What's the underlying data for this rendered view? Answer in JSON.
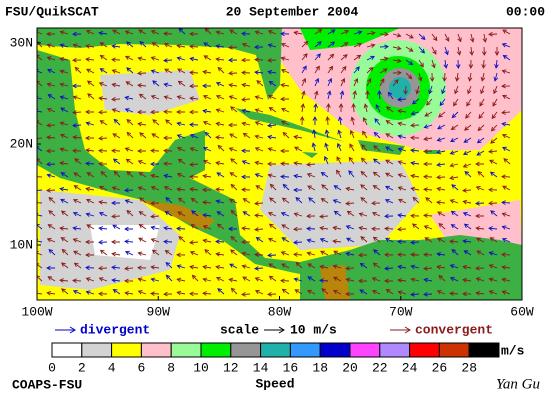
{
  "header": {
    "source": "FSU/QuikSCAT",
    "date": "20 September 2004",
    "time": "00:00"
  },
  "map": {
    "lat_labels": [
      "30N",
      "20N",
      "10N"
    ],
    "lon_labels": [
      "100W",
      "90W",
      "80W",
      "70W",
      "60W"
    ]
  },
  "legend": {
    "divergent": "divergent",
    "scale": "scale",
    "scale_value": "10 m/s",
    "convergent": "convergent"
  },
  "speed_legend": {
    "title": "Speed",
    "unit": "m/s",
    "labels": [
      0,
      2,
      4,
      6,
      8,
      10,
      12,
      14,
      16,
      18,
      20,
      22,
      24,
      26,
      28
    ],
    "colors": [
      "#ffffff",
      "#d3d3d3",
      "#ffff00",
      "#ffc0cb",
      "#98fb98",
      "#00ee00",
      "#969696",
      "#20b2aa",
      "#3399ff",
      "#0000cd",
      "#ff44ff",
      "#b088ff",
      "#ff0000",
      "#cc3300",
      "#000000"
    ]
  },
  "footer": {
    "credit": "COAPS-FSU",
    "signature": "Yan Gu"
  }
}
